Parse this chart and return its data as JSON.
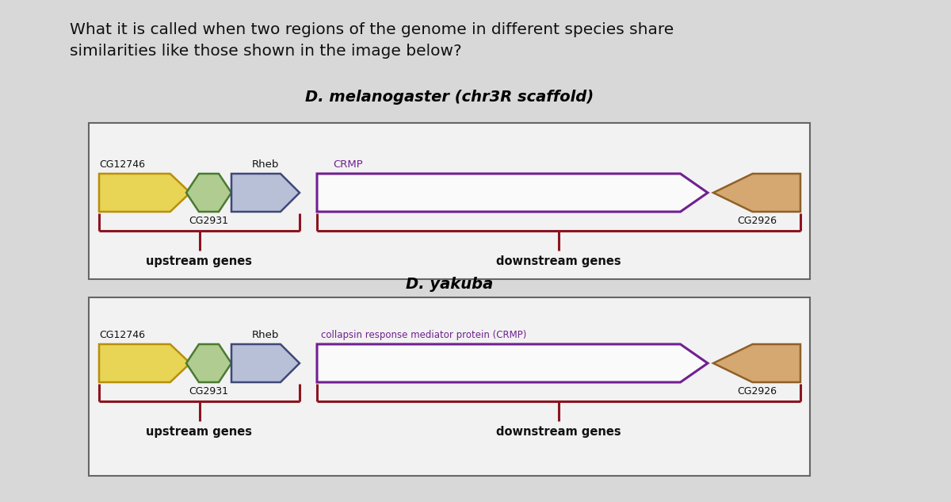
{
  "bg_color": "#d8d8d8",
  "panel_bg": "#f0f0f0",
  "question_line1": "What it is called when two regions of the genome in different species share",
  "question_line2": "similarities like those shown in the image below?",
  "panel1_title": "D. melanogaster (chr3R scaffold)",
  "panel2_title": "D. yakuba",
  "upstream_label": "upstream genes",
  "downstream_label": "downstream genes",
  "color_yellow": "#e8d455",
  "color_yellow_border": "#b8900a",
  "color_green": "#b0cc90",
  "color_green_border": "#4a7a30",
  "color_blue_light": "#b8c0d8",
  "color_blue_border": "#404878",
  "color_purple_border": "#702090",
  "color_purple_fill": "#fafafa",
  "color_orange": "#d4a870",
  "color_orange_border": "#906028",
  "bracket_color": "#8b1520",
  "text_color_purple": "#702090",
  "text_color_dark": "#111111",
  "text_color_label": "#333333"
}
